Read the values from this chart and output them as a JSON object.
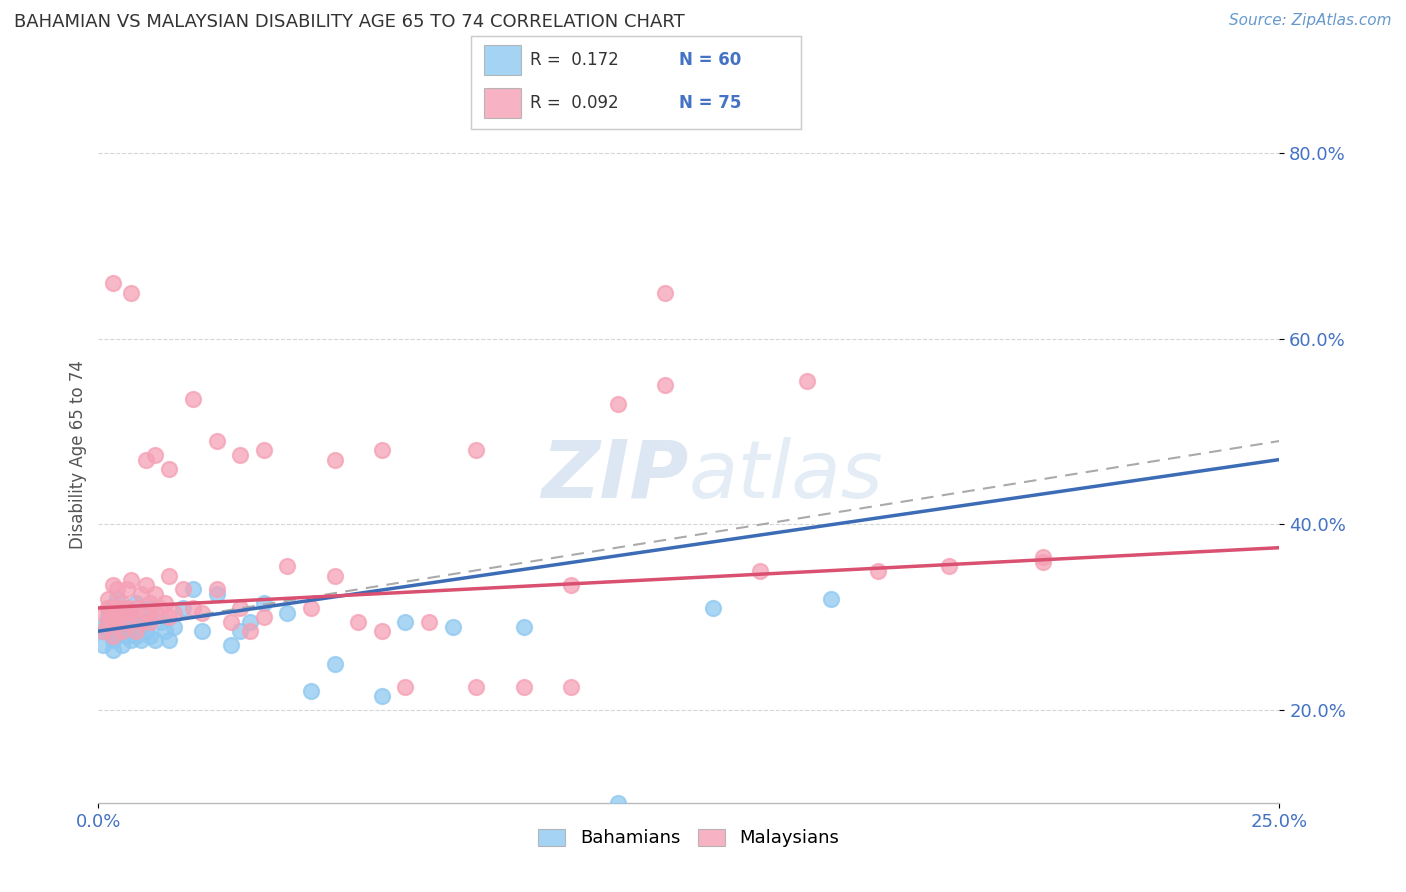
{
  "title": "BAHAMIAN VS MALAYSIAN DISABILITY AGE 65 TO 74 CORRELATION CHART",
  "source_text": "Source: ZipAtlas.com",
  "ylabel": "Disability Age 65 to 74",
  "xlim": [
    0.0,
    0.25
  ],
  "ylim": [
    0.1,
    0.85
  ],
  "xticks": [
    0.0,
    0.25
  ],
  "xticklabels": [
    "0.0%",
    "25.0%"
  ],
  "yticks": [
    0.2,
    0.4,
    0.6,
    0.8
  ],
  "yticklabels": [
    "20.0%",
    "40.0%",
    "60.0%",
    "80.0%"
  ],
  "bahamian_color": "#8EC8F0",
  "malaysian_color": "#F5A0B5",
  "blue_line_color": "#3B6CB5",
  "pink_line_color": "#D95070",
  "dash_line_color": "#AAAAAA",
  "watermark_color": "#C5D8EC",
  "bahamian_x": [
    0.001,
    0.001,
    0.001,
    0.002,
    0.002,
    0.002,
    0.002,
    0.003,
    0.003,
    0.003,
    0.003,
    0.003,
    0.004,
    0.004,
    0.004,
    0.004,
    0.005,
    0.005,
    0.005,
    0.005,
    0.005,
    0.006,
    0.006,
    0.006,
    0.006,
    0.007,
    0.007,
    0.007,
    0.008,
    0.008,
    0.008,
    0.009,
    0.009,
    0.01,
    0.01,
    0.011,
    0.011,
    0.012,
    0.013,
    0.014,
    0.015,
    0.016,
    0.018,
    0.02,
    0.022,
    0.025,
    0.028,
    0.03,
    0.032,
    0.035,
    0.04,
    0.045,
    0.05,
    0.06,
    0.065,
    0.075,
    0.09,
    0.11,
    0.13,
    0.155
  ],
  "bahamian_y": [
    0.29,
    0.27,
    0.285,
    0.31,
    0.295,
    0.285,
    0.3,
    0.305,
    0.295,
    0.285,
    0.275,
    0.265,
    0.28,
    0.295,
    0.31,
    0.32,
    0.3,
    0.285,
    0.27,
    0.295,
    0.305,
    0.28,
    0.295,
    0.31,
    0.285,
    0.295,
    0.275,
    0.305,
    0.28,
    0.295,
    0.315,
    0.275,
    0.29,
    0.285,
    0.295,
    0.28,
    0.31,
    0.275,
    0.295,
    0.285,
    0.275,
    0.29,
    0.31,
    0.33,
    0.285,
    0.325,
    0.27,
    0.285,
    0.295,
    0.315,
    0.305,
    0.22,
    0.25,
    0.215,
    0.295,
    0.29,
    0.29,
    0.1,
    0.31,
    0.32
  ],
  "malaysian_x": [
    0.001,
    0.001,
    0.002,
    0.002,
    0.002,
    0.003,
    0.003,
    0.003,
    0.003,
    0.004,
    0.004,
    0.004,
    0.005,
    0.005,
    0.005,
    0.006,
    0.006,
    0.006,
    0.007,
    0.007,
    0.008,
    0.008,
    0.009,
    0.009,
    0.01,
    0.01,
    0.011,
    0.011,
    0.012,
    0.012,
    0.013,
    0.014,
    0.015,
    0.015,
    0.016,
    0.018,
    0.02,
    0.022,
    0.025,
    0.028,
    0.03,
    0.032,
    0.035,
    0.04,
    0.045,
    0.05,
    0.055,
    0.06,
    0.065,
    0.07,
    0.08,
    0.09,
    0.1,
    0.11,
    0.12,
    0.14,
    0.15,
    0.165,
    0.18,
    0.2,
    0.01,
    0.012,
    0.015,
    0.02,
    0.025,
    0.03,
    0.035,
    0.05,
    0.06,
    0.08,
    0.1,
    0.12,
    0.2,
    0.003,
    0.007
  ],
  "malaysian_y": [
    0.305,
    0.285,
    0.32,
    0.295,
    0.31,
    0.295,
    0.31,
    0.335,
    0.28,
    0.31,
    0.295,
    0.33,
    0.305,
    0.285,
    0.315,
    0.295,
    0.33,
    0.31,
    0.305,
    0.34,
    0.285,
    0.31,
    0.295,
    0.325,
    0.305,
    0.335,
    0.295,
    0.315,
    0.305,
    0.325,
    0.31,
    0.315,
    0.3,
    0.345,
    0.305,
    0.33,
    0.31,
    0.305,
    0.33,
    0.295,
    0.31,
    0.285,
    0.3,
    0.355,
    0.31,
    0.345,
    0.295,
    0.285,
    0.225,
    0.295,
    0.225,
    0.225,
    0.335,
    0.53,
    0.55,
    0.35,
    0.555,
    0.35,
    0.355,
    0.36,
    0.47,
    0.475,
    0.46,
    0.535,
    0.49,
    0.475,
    0.48,
    0.47,
    0.48,
    0.48,
    0.225,
    0.65,
    0.365,
    0.66,
    0.65
  ],
  "bah_line_x0": 0.0,
  "bah_line_x1": 0.25,
  "bah_line_y0": 0.285,
  "bah_line_y1": 0.47,
  "mal_line_x0": 0.0,
  "mal_line_x1": 0.25,
  "mal_line_y0": 0.31,
  "mal_line_y1": 0.375,
  "dash_line_y0": 0.285,
  "dash_line_y1": 0.49
}
